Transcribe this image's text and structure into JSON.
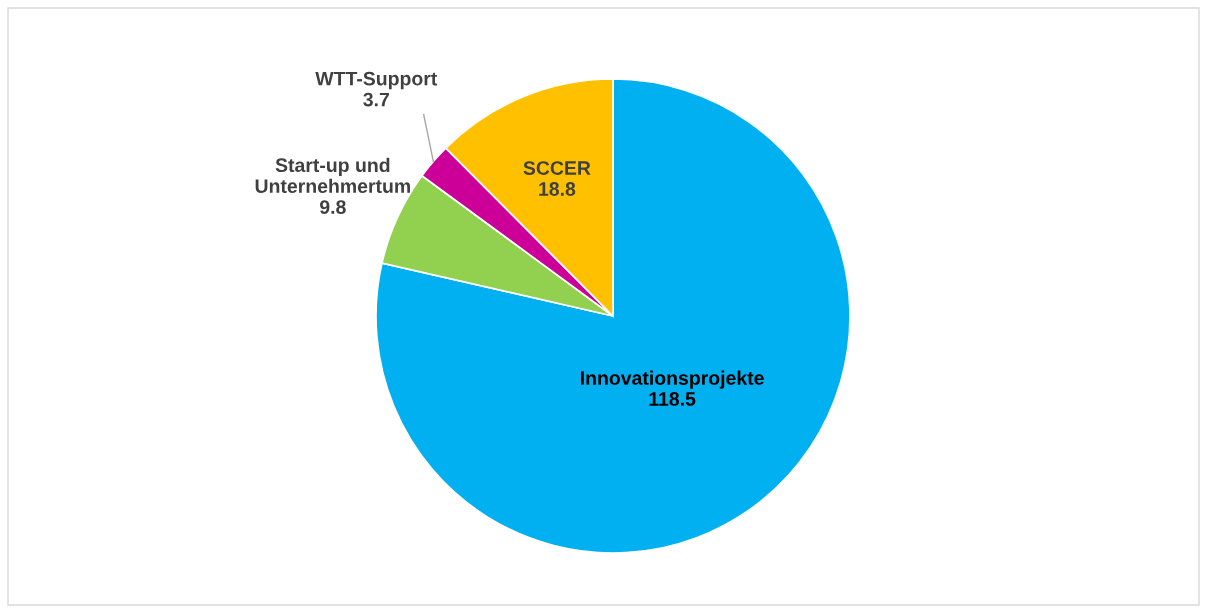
{
  "chart_data": {
    "type": "pie",
    "categories": [
      "Innovationsprojekte",
      "Start-up und\nUnternehmertum",
      "WTT-Support",
      "SCCER"
    ],
    "values": [
      118.5,
      9.8,
      3.7,
      18.8
    ],
    "colors": [
      "#00b0f0",
      "#92d050",
      "#cc0099",
      "#ffc000"
    ],
    "data_labels": true
  }
}
